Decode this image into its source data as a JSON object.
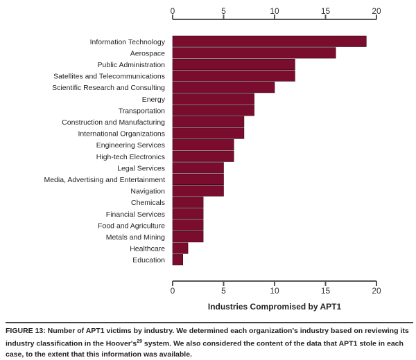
{
  "chart_data": {
    "type": "bar",
    "orientation": "horizontal",
    "title": "Industries Compromised by APT1",
    "categories": [
      "Information Technology",
      "Aerospace",
      "Public Administration",
      "Satellites and Telecommunications",
      "Scientific Research and Consulting",
      "Energy",
      "Transportation",
      "Construction and Manufacturing",
      "International Organizations",
      "Engineering Services",
      "High-tech Electronics",
      "Legal Services",
      "Media, Advertising and Entertainment",
      "Navigation",
      "Chemicals",
      "Financial Services",
      "Food and Agriculture",
      "Metals and Mining",
      "Healthcare",
      "Education"
    ],
    "values": [
      19,
      16,
      12,
      12,
      10,
      8,
      8,
      7,
      7,
      6,
      6,
      5,
      5,
      5,
      3,
      3,
      3,
      3,
      1.5,
      1
    ],
    "xlim": [
      0,
      20
    ],
    "xticks": [
      "0",
      "5",
      "10",
      "15",
      "20"
    ],
    "axis_position": "top and bottom",
    "grid": false,
    "bar_color": "#7a0c2e"
  },
  "caption": {
    "before_sup": "FIGURE 13: Number of APT1 victims by industry. We determined each organization's industry based on reviewing its industry classification in the Hoover's",
    "sup": "29",
    "after_sup": " system. We also considered the content of the data that APT1 stole in each case, to the extent that this information was available."
  }
}
